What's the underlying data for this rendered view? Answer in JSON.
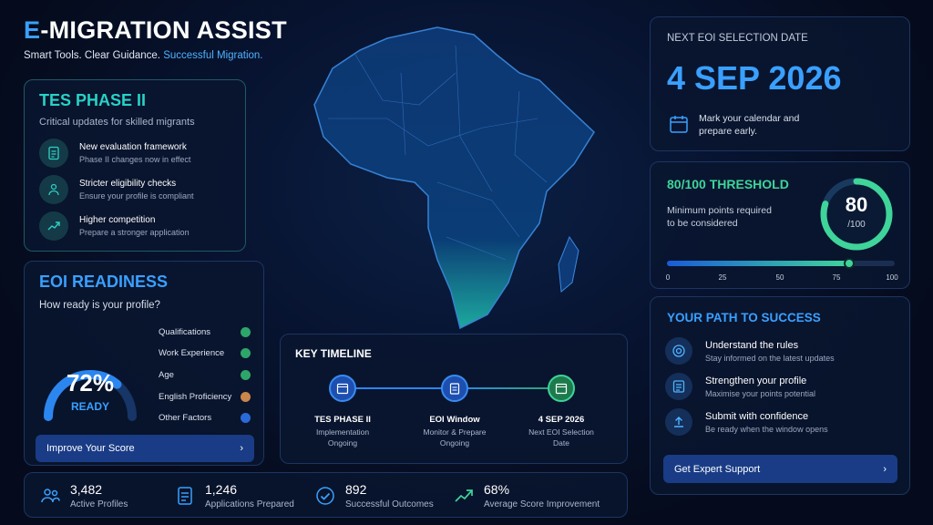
{
  "brand": {
    "title_accent": "E",
    "title_rest": "-MIGRATION ASSIST",
    "tagline_a": "Smart Tools. Clear Guidance.",
    "tagline_b": "Successful Migration."
  },
  "tes": {
    "title": "TES PHASE II",
    "subtitle": "Critical updates for skilled migrants",
    "items": [
      {
        "title": "New evaluation framework",
        "desc": "Phase II changes now in effect",
        "icon": "document-icon"
      },
      {
        "title": "Stricter eligibility checks",
        "desc": "Ensure your profile is compliant",
        "icon": "users-icon"
      },
      {
        "title": "Higher competition",
        "desc": "Prepare a stronger application",
        "icon": "trend-icon"
      }
    ]
  },
  "eoi": {
    "title": "EOI READINESS",
    "subtitle": "How ready is your profile?",
    "percent_label": "72%",
    "ready_label": "READY",
    "percent": 72,
    "checks": [
      {
        "label": "Qualifications",
        "status": "done"
      },
      {
        "label": "Work Experience",
        "status": "done"
      },
      {
        "label": "Age",
        "status": "done"
      },
      {
        "label": "English Proficiency",
        "status": "warning"
      },
      {
        "label": "Other Factors",
        "status": "pending"
      }
    ],
    "button_label": "Improve Your Score"
  },
  "timeline": {
    "title": "KEY TIMELINE",
    "nodes": [
      {
        "title": "TES PHASE II",
        "line1": "Implementation",
        "line2": "Ongoing"
      },
      {
        "title": "EOI Window",
        "line1": "Monitor & Prepare",
        "line2": "Ongoing"
      },
      {
        "title": "4 SEP 2026",
        "line1": "Next EOI Selection",
        "line2": "Date"
      }
    ]
  },
  "stats": [
    {
      "value": "3,482",
      "label": "Active Profiles",
      "icon": "users-icon"
    },
    {
      "value": "1,246",
      "label": "Applications Prepared",
      "icon": "document-icon"
    },
    {
      "value": "892",
      "label": "Successful Outcomes",
      "icon": "check-circle-icon"
    },
    {
      "value": "68%",
      "label": "Average Score Improvement",
      "icon": "trend-icon"
    }
  ],
  "next_date": {
    "label": "NEXT EOI SELECTION DATE",
    "date": "4 SEP 2026",
    "note_line1": "Mark your calendar and",
    "note_line2": "prepare early."
  },
  "threshold": {
    "title": "80/100 THRESHOLD",
    "desc_line1": "Minimum points required",
    "desc_line2": "to be considered",
    "score": "80",
    "max": "/100",
    "value": 80,
    "scale": [
      "0",
      "25",
      "50",
      "75",
      "100"
    ]
  },
  "path": {
    "title": "YOUR PATH TO SUCCESS",
    "items": [
      {
        "title": "Understand the rules",
        "desc": "Stay informed on the latest updates",
        "icon": "target-icon"
      },
      {
        "title": "Strengthen your profile",
        "desc": "Maximise your points potential",
        "icon": "checklist-icon"
      },
      {
        "title": "Submit with confidence",
        "desc": "Be ready when the window opens",
        "icon": "upload-icon"
      }
    ],
    "button_label": "Get Expert Support"
  },
  "colors": {
    "accent": "#3aa0ff",
    "cyan": "#27d2c6",
    "green": "#3fd49a",
    "warning": "#c9864b"
  }
}
